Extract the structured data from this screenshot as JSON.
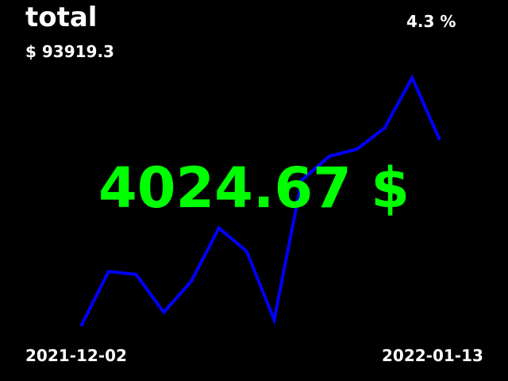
{
  "header": {
    "title": "total",
    "change": "4.3 %",
    "total_value": "$ 93919.3"
  },
  "main": {
    "current_value": "4024.67 $",
    "current_value_color": "#00ff00"
  },
  "footer": {
    "date_start": "2021-12-02",
    "date_end": "2022-01-13"
  },
  "chart_data": {
    "type": "line",
    "line_color": "#0000ff",
    "ylim": [
      0,
      100
    ],
    "series": [
      {
        "values": [
          0,
          20.4,
          19.3,
          5.2,
          16.8,
          36.6,
          28.0,
          2.4,
          54.5,
          63.3,
          66.0,
          73.9,
          92.6,
          69.5
        ]
      }
    ]
  }
}
